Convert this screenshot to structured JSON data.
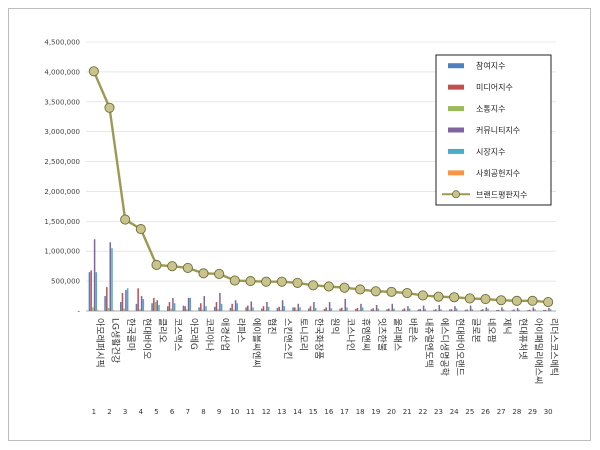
{
  "chart_data": {
    "type": "bar",
    "title": "",
    "xlabel": "",
    "ylabel": "",
    "ylim": [
      0,
      4500000
    ],
    "yticks": [
      0,
      500000,
      1000000,
      1500000,
      2000000,
      2500000,
      3000000,
      3500000,
      4000000,
      4500000
    ],
    "ytick_labels": [
      "-",
      "500,000",
      "1,000,000",
      "1,500,000",
      "2,000,000",
      "2,500,000",
      "3,000,000",
      "3,500,000",
      "4,000,000",
      "4,500,000"
    ],
    "grid": true,
    "legend_position": "top-right",
    "categories": [
      "아모레퍼시픽",
      "LG생활건강",
      "한국콜마",
      "현대바이오",
      "클리오",
      "코스맥스",
      "아모레G",
      "코리아나",
      "애경산업",
      "라파스",
      "에이블씨엔씨",
      "협진",
      "스킨앤스킨",
      "토니모리",
      "한국화장품",
      "원익",
      "코스나인",
      "휴엠앤씨",
      "잇츠한불",
      "울리패스",
      "바른손",
      "내츄럴엔도텍",
      "에스디생명공학",
      "현대바이오랜드",
      "글로본",
      "네오팜",
      "제닉",
      "현대퓨처넷",
      "아이패밀리에스씨",
      "리더스코스메틱"
    ],
    "ranks": [
      "1",
      "2",
      "3",
      "4",
      "5",
      "6",
      "7",
      "8",
      "9",
      "10",
      "11",
      "12",
      "13",
      "14",
      "15",
      "16",
      "17",
      "18",
      "19",
      "20",
      "21",
      "22",
      "23",
      "24",
      "25",
      "26",
      "27",
      "28",
      "29",
      "30"
    ],
    "series": [
      {
        "name": "참여지수",
        "color": "#4f81bd",
        "type": "bar",
        "values": [
          650000,
          250000,
          150000,
          120000,
          130000,
          80000,
          90000,
          60000,
          70000,
          50000,
          60000,
          40000,
          50000,
          60000,
          40000,
          35000,
          40000,
          35000,
          30000,
          30000,
          25000,
          25000,
          20000,
          25000,
          20000,
          20000,
          15000,
          15000,
          15000,
          15000
        ]
      },
      {
        "name": "미디어지수",
        "color": "#c0504d",
        "type": "bar",
        "values": [
          680000,
          400000,
          300000,
          380000,
          220000,
          150000,
          80000,
          130000,
          150000,
          120000,
          90000,
          80000,
          70000,
          60000,
          80000,
          60000,
          55000,
          50000,
          45000,
          40000,
          45000,
          35000,
          30000,
          30000,
          25000,
          30000,
          20000,
          25000,
          20000,
          20000
        ]
      },
      {
        "name": "소통지수",
        "color": "#9bbb59",
        "type": "bar",
        "values": [
          60000,
          50000,
          40000,
          30000,
          150000,
          40000,
          30000,
          25000,
          30000,
          25000,
          20000,
          15000,
          20000,
          20000,
          15000,
          15000,
          15000,
          15000,
          12000,
          12000,
          10000,
          10000,
          10000,
          10000,
          8000,
          8000,
          8000,
          8000,
          8000,
          8000
        ]
      },
      {
        "name": "커뮤니티지수",
        "color": "#8064a2",
        "type": "bar",
        "values": [
          1200000,
          1150000,
          350000,
          250000,
          180000,
          220000,
          220000,
          250000,
          300000,
          180000,
          160000,
          150000,
          180000,
          120000,
          150000,
          150000,
          200000,
          120000,
          100000,
          120000,
          80000,
          90000,
          100000,
          80000,
          90000,
          60000,
          60000,
          50000,
          60000,
          50000
        ]
      },
      {
        "name": "시장지수",
        "color": "#4bacc6",
        "type": "bar",
        "values": [
          650000,
          1050000,
          380000,
          200000,
          100000,
          130000,
          220000,
          80000,
          120000,
          130000,
          60000,
          70000,
          80000,
          60000,
          50000,
          45000,
          60000,
          60000,
          40000,
          40000,
          40000,
          30000,
          30000,
          40000,
          30000,
          40000,
          25000,
          20000,
          30000,
          30000
        ]
      },
      {
        "name": "사회공헌지수",
        "color": "#f79646",
        "type": "bar",
        "values": [
          20000,
          15000,
          10000,
          8000,
          5000,
          8000,
          10000,
          5000,
          8000,
          5000,
          5000,
          5000,
          5000,
          5000,
          5000,
          5000,
          5000,
          5000,
          5000,
          5000,
          5000,
          5000,
          5000,
          5000,
          5000,
          5000,
          5000,
          5000,
          5000,
          5000
        ]
      },
      {
        "name": "브랜드평판지수",
        "color": "#9c9a52",
        "type": "line",
        "values": [
          4010000,
          3400000,
          1530000,
          1370000,
          770000,
          750000,
          720000,
          630000,
          620000,
          510000,
          500000,
          490000,
          490000,
          470000,
          430000,
          410000,
          390000,
          360000,
          330000,
          320000,
          300000,
          260000,
          240000,
          230000,
          210000,
          200000,
          180000,
          170000,
          170000,
          150000
        ]
      }
    ]
  }
}
